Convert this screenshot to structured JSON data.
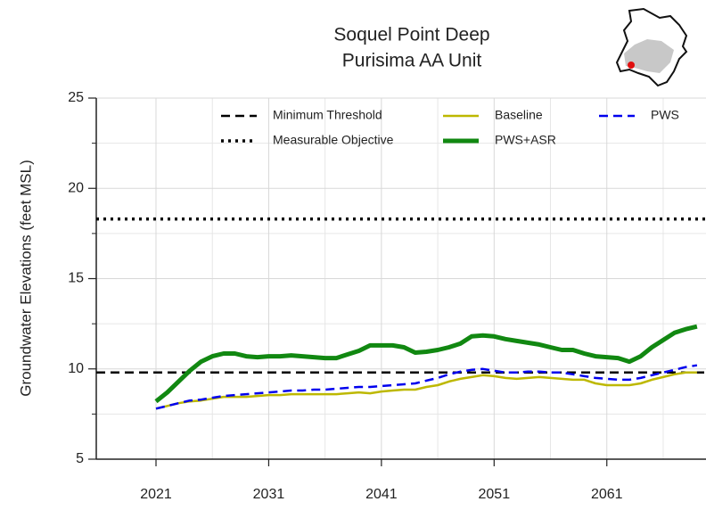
{
  "chart_data": {
    "type": "line",
    "title": [
      "Soquel Point Deep",
      "Purisima AA Unit"
    ],
    "y_label": "Groundwater Elevations (feet MSL)",
    "x": [
      2021,
      2022,
      2023,
      2024,
      2025,
      2026,
      2027,
      2028,
      2029,
      2030,
      2031,
      2032,
      2033,
      2034,
      2035,
      2036,
      2037,
      2038,
      2039,
      2040,
      2041,
      2042,
      2043,
      2044,
      2045,
      2046,
      2047,
      2048,
      2049,
      2050,
      2051,
      2052,
      2053,
      2054,
      2055,
      2056,
      2057,
      2058,
      2059,
      2060,
      2061,
      2062,
      2063,
      2064,
      2065,
      2066,
      2067,
      2068,
      2069
    ],
    "xlim": [
      2015.7,
      2069.8
    ],
    "xticks": [
      2021,
      2031,
      2041,
      2051,
      2061
    ],
    "x_minor_ticks": [
      2026,
      2036,
      2046,
      2056,
      2066
    ],
    "ylim": [
      5,
      25
    ],
    "yticks": [
      5,
      10,
      15,
      20,
      25
    ],
    "y_minor_ticks": [
      7.5,
      12.5,
      17.5,
      22.5
    ],
    "grid": true,
    "reference_lines": [
      {
        "name": "Minimum Threshold",
        "value": 9.8,
        "color": "#000000",
        "dash": "dashed"
      },
      {
        "name": "Measurable Objective",
        "value": 18.3,
        "color": "#000000",
        "dash": "dotted"
      }
    ],
    "series": [
      {
        "name": "Baseline",
        "color": "#bdb800",
        "width": 2.5,
        "dash": "solid",
        "values": [
          7.8,
          7.95,
          8.1,
          8.2,
          8.25,
          8.35,
          8.45,
          8.45,
          8.45,
          8.5,
          8.55,
          8.55,
          8.6,
          8.6,
          8.6,
          8.6,
          8.6,
          8.65,
          8.7,
          8.65,
          8.75,
          8.8,
          8.85,
          8.85,
          9.0,
          9.1,
          9.3,
          9.45,
          9.55,
          9.65,
          9.6,
          9.5,
          9.45,
          9.5,
          9.55,
          9.5,
          9.45,
          9.4,
          9.4,
          9.2,
          9.1,
          9.1,
          9.1,
          9.2,
          9.4,
          9.55,
          9.7,
          9.8,
          9.8
        ]
      },
      {
        "name": "PWS+ASR",
        "color": "#118811",
        "width": 5,
        "dash": "solid",
        "values": [
          8.2,
          8.7,
          9.3,
          9.9,
          10.4,
          10.7,
          10.85,
          10.85,
          10.7,
          10.65,
          10.7,
          10.7,
          10.75,
          10.7,
          10.65,
          10.6,
          10.6,
          10.8,
          11.0,
          11.3,
          11.3,
          11.3,
          11.2,
          10.9,
          10.95,
          11.05,
          11.2,
          11.4,
          11.8,
          11.85,
          11.8,
          11.65,
          11.55,
          11.45,
          11.35,
          11.2,
          11.05,
          11.05,
          10.85,
          10.7,
          10.65,
          10.6,
          10.4,
          10.7,
          11.2,
          11.6,
          12.0,
          12.2,
          12.35
        ]
      },
      {
        "name": "PWS",
        "color": "#0000ee",
        "width": 2.5,
        "dash": "dashed",
        "values": [
          7.8,
          7.95,
          8.1,
          8.25,
          8.3,
          8.4,
          8.5,
          8.55,
          8.6,
          8.65,
          8.7,
          8.75,
          8.8,
          8.8,
          8.85,
          8.85,
          8.9,
          8.95,
          9.0,
          9.0,
          9.05,
          9.1,
          9.15,
          9.2,
          9.35,
          9.5,
          9.7,
          9.85,
          9.95,
          10.0,
          9.9,
          9.8,
          9.8,
          9.85,
          9.85,
          9.8,
          9.8,
          9.7,
          9.6,
          9.5,
          9.45,
          9.4,
          9.4,
          9.5,
          9.65,
          9.8,
          9.95,
          10.1,
          10.2
        ]
      }
    ]
  }
}
